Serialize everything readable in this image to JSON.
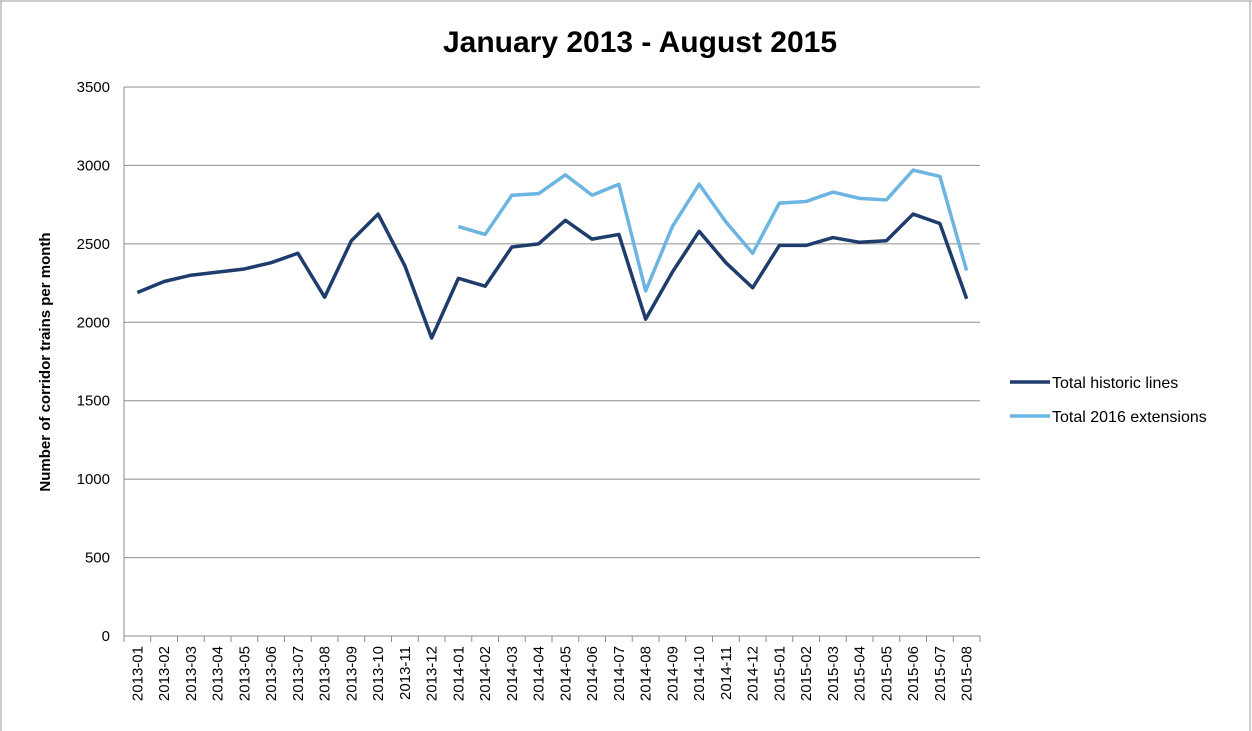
{
  "chart_data": {
    "type": "line",
    "title": "January 2013 - August 2015",
    "y_label": "Number of corridor trains per month",
    "categories": [
      "2013-01",
      "2013-02",
      "2013-03",
      "2013-04",
      "2013-05",
      "2013-06",
      "2013-07",
      "2013-08",
      "2013-09",
      "2013-10",
      "2013-11",
      "2013-12",
      "2014-01",
      "2014-02",
      "2014-03",
      "2014-04",
      "2014-05",
      "2014-06",
      "2014-07",
      "2014-08",
      "2014-09",
      "2014-10",
      "2014-11",
      "2014-12",
      "2015-01",
      "2015-02",
      "2015-03",
      "2015-04",
      "2015-05",
      "2015-06",
      "2015-07",
      "2015-08"
    ],
    "series": [
      {
        "name": "Total historic lines",
        "color": "#1f3d6c",
        "values": [
          2190,
          2260,
          2300,
          2320,
          2340,
          2380,
          2440,
          2160,
          2520,
          2690,
          2360,
          1900,
          2280,
          2230,
          2480,
          2500,
          2650,
          2530,
          2560,
          2020,
          2320,
          2580,
          2380,
          2220,
          2490,
          2490,
          2540,
          2510,
          2520,
          2690,
          2630,
          2150
        ]
      },
      {
        "name": "Total 2016 extensions",
        "color": "#6cb4e2",
        "values": [
          null,
          null,
          null,
          null,
          null,
          null,
          null,
          null,
          null,
          null,
          null,
          null,
          2610,
          2560,
          2810,
          2820,
          2940,
          2810,
          2880,
          2200,
          2610,
          2880,
          2640,
          2440,
          2760,
          2770,
          2830,
          2790,
          2780,
          2970,
          2930,
          2330
        ]
      }
    ],
    "ylim": [
      0,
      3500
    ],
    "yticks": [
      0,
      500,
      1000,
      1500,
      2000,
      2500,
      3000,
      3500
    ],
    "grid": true,
    "legend": "right"
  }
}
